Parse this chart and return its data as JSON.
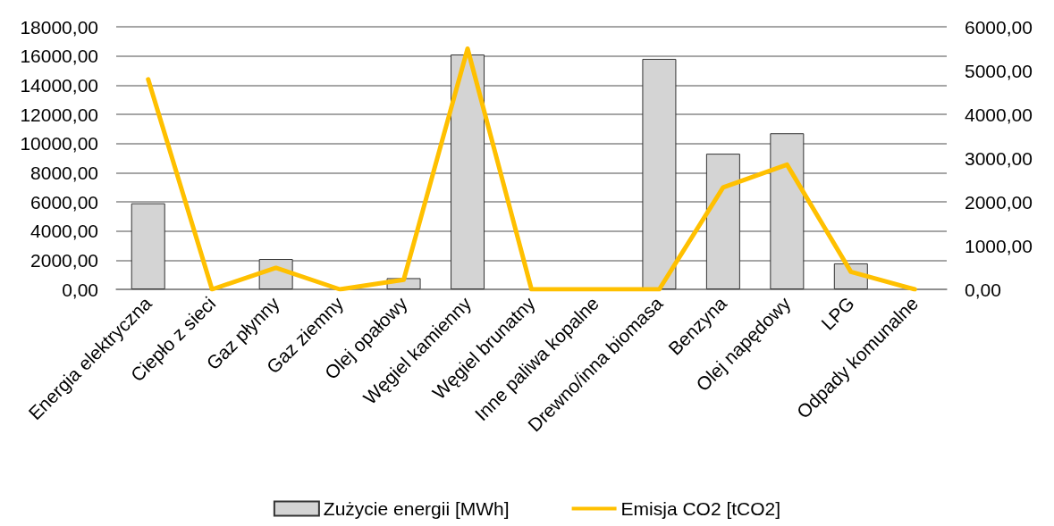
{
  "chart_data": {
    "type": "bar",
    "categories": [
      "Energia elektryczna",
      "Ciepło z sieci",
      "Gaz płynny",
      "Gaz ziemny",
      "Olej opałowy",
      "Węgiel kamienny",
      "Węgiel brunatny",
      "Inne paliwa kopalne",
      "Drewno/inna biomasa",
      "Benzyna",
      "Olej napędowy",
      "LPG",
      "Odpady komunalne"
    ],
    "series": [
      {
        "name": "Zużycie energii [MWh]",
        "color": "#d4d4d4",
        "values": [
          5900,
          0,
          2080,
          0,
          770,
          16100,
          0,
          0,
          15800,
          9300,
          10700,
          1780,
          0
        ]
      },
      {
        "name": "Emisja CO2 [tCO2]",
        "type": "line",
        "axis": "y2",
        "color": "#ffc000",
        "values": [
          4800,
          0,
          490,
          0,
          220,
          5500,
          0,
          0,
          0,
          2330,
          2850,
          400,
          0
        ]
      }
    ],
    "ylim": [
      0,
      18000
    ],
    "yticks": [
      {
        "value": 0,
        "label": "0,00"
      },
      {
        "value": 2000,
        "label": "2000,00"
      },
      {
        "value": 4000,
        "label": "4000,00"
      },
      {
        "value": 6000,
        "label": "6000,00"
      },
      {
        "value": 8000,
        "label": "8000,00"
      },
      {
        "value": 10000,
        "label": "10000,00"
      },
      {
        "value": 12000,
        "label": "12000,00"
      },
      {
        "value": 14000,
        "label": "14000,00"
      },
      {
        "value": 16000,
        "label": "16000,00"
      },
      {
        "value": 18000,
        "label": "18000,00"
      }
    ],
    "y2lim": [
      0,
      6000
    ],
    "y2ticks": [
      {
        "value": 0,
        "label": "0,00"
      },
      {
        "value": 1000,
        "label": "1000,00"
      },
      {
        "value": 2000,
        "label": "2000,00"
      },
      {
        "value": 3000,
        "label": "3000,00"
      },
      {
        "value": 4000,
        "label": "4000,00"
      },
      {
        "value": 5000,
        "label": "5000,00"
      },
      {
        "value": 6000,
        "label": "6000,00"
      }
    ],
    "grid": "y",
    "legend": "bottom",
    "marker": "none",
    "line_style": "solid"
  }
}
